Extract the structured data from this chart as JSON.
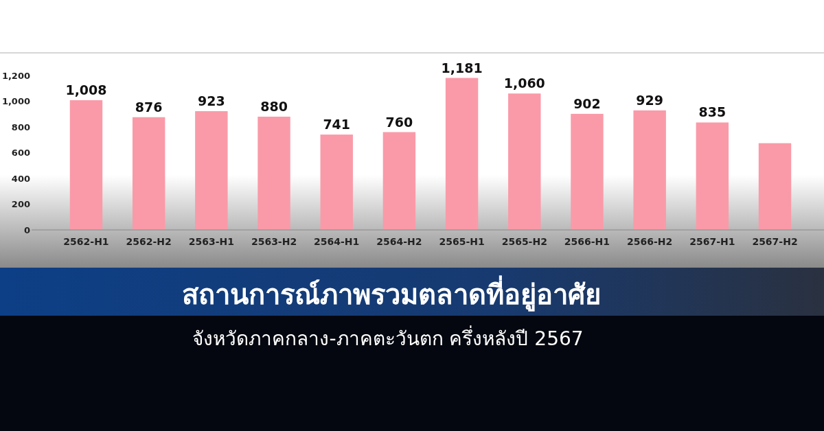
{
  "chart_data": {
    "type": "bar",
    "title": "สถานการณ์ภาพรวมตลาดที่อยู่อาศัย",
    "subtitle": "จังหวัดภาคกลาง-ภาคตะวันตก ครึ่งหลังปี 2567",
    "categories": [
      "2562-H1",
      "2562-H2",
      "2563-H1",
      "2563-H2",
      "2564-H1",
      "2564-H2",
      "2565-H1",
      "2565-H2",
      "2566-H1",
      "2566-H2",
      "2567-H1",
      "2567-H2"
    ],
    "values": [
      1008,
      876,
      923,
      880,
      741,
      760,
      1181,
      1060,
      902,
      929,
      835,
      674
    ],
    "value_labels": [
      "1,008",
      "876",
      "923",
      "880",
      "741",
      "760",
      "1,181",
      "1,060",
      "902",
      "929",
      "835",
      null
    ],
    "color": "#fa9aa8",
    "ylim": [
      0,
      1200
    ],
    "yticks": [
      0,
      200,
      400,
      600,
      800,
      {
        "value": 1000,
        "label": "1,000"
      },
      {
        "value": 1200,
        "label": "1,200"
      }
    ],
    "grid": false
  }
}
